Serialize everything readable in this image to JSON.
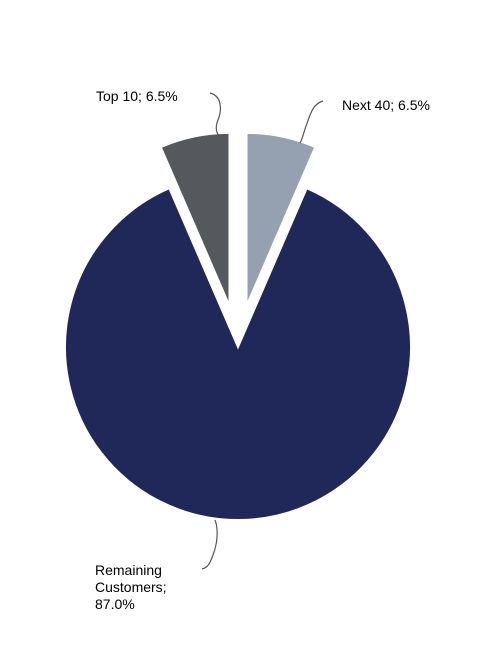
{
  "chart_data": {
    "type": "pie",
    "labels": [
      "Top 10; 6.5%",
      "Next 40; 6.5%",
      "Remaining Customers; 87.0%"
    ],
    "values": [
      6.5,
      6.5,
      87.0
    ],
    "colors": [
      "#55595d",
      "#95a1b1",
      "#1f2858"
    ],
    "exploded": [
      true,
      true,
      false
    ]
  }
}
